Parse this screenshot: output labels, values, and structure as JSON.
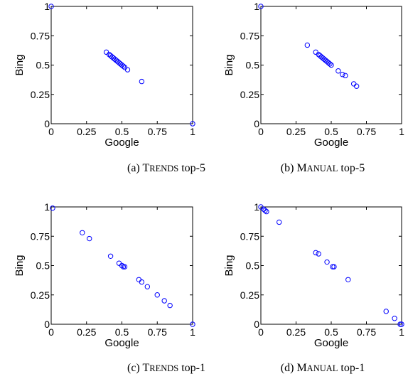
{
  "chart_data": [
    {
      "type": "scatter",
      "caption": {
        "prefix": "(a) ",
        "name_first": "T",
        "name_rest": "RENDS",
        "suffix": " top-5"
      },
      "xlabel": "Google",
      "ylabel": "Bing",
      "xlim": [
        0,
        1
      ],
      "ylim": [
        0,
        1
      ],
      "xticks": [
        "0",
        "0.25",
        "0.5",
        "0.75",
        "1"
      ],
      "yticks": [
        "0",
        "0.25",
        "0.5",
        "0.75",
        "1"
      ],
      "marker": "circle-open",
      "color": "#0000ff",
      "points": [
        [
          0.0,
          1.0
        ],
        [
          0.39,
          0.61
        ],
        [
          0.41,
          0.59
        ],
        [
          0.42,
          0.58
        ],
        [
          0.43,
          0.57
        ],
        [
          0.44,
          0.56
        ],
        [
          0.45,
          0.55
        ],
        [
          0.46,
          0.54
        ],
        [
          0.47,
          0.53
        ],
        [
          0.48,
          0.52
        ],
        [
          0.49,
          0.51
        ],
        [
          0.5,
          0.5
        ],
        [
          0.51,
          0.49
        ],
        [
          0.52,
          0.48
        ],
        [
          0.54,
          0.46
        ],
        [
          0.64,
          0.36
        ],
        [
          1.0,
          0.0
        ]
      ]
    },
    {
      "type": "scatter",
      "caption": {
        "prefix": "(b) ",
        "name_first": "M",
        "name_rest": "ANUAL",
        "suffix": " top-5"
      },
      "xlabel": "Google",
      "ylabel": "Bing",
      "xlim": [
        0,
        1
      ],
      "ylim": [
        0,
        1
      ],
      "xticks": [
        "0",
        "0.25",
        "0.5",
        "0.75",
        "1"
      ],
      "yticks": [
        "0",
        "0.25",
        "0.5",
        "0.75",
        "1"
      ],
      "marker": "circle-open",
      "color": "#0000ff",
      "points": [
        [
          0.0,
          1.0
        ],
        [
          0.33,
          0.67
        ],
        [
          0.39,
          0.61
        ],
        [
          0.41,
          0.59
        ],
        [
          0.42,
          0.58
        ],
        [
          0.43,
          0.57
        ],
        [
          0.44,
          0.56
        ],
        [
          0.45,
          0.55
        ],
        [
          0.46,
          0.54
        ],
        [
          0.47,
          0.53
        ],
        [
          0.48,
          0.52
        ],
        [
          0.49,
          0.51
        ],
        [
          0.5,
          0.5
        ],
        [
          0.55,
          0.45
        ],
        [
          0.58,
          0.42
        ],
        [
          0.6,
          0.41
        ],
        [
          0.66,
          0.34
        ],
        [
          0.68,
          0.32
        ]
      ]
    },
    {
      "type": "scatter",
      "caption": {
        "prefix": "(c) ",
        "name_first": "T",
        "name_rest": "RENDS",
        "suffix": " top-1"
      },
      "xlabel": "Google",
      "ylabel": "Bing",
      "xlim": [
        0,
        1
      ],
      "ylim": [
        0,
        1
      ],
      "xticks": [
        "0",
        "0.25",
        "0.5",
        "0.75",
        "1"
      ],
      "yticks": [
        "0",
        "0.25",
        "0.5",
        "0.75",
        "1"
      ],
      "marker": "circle-open",
      "color": "#0000ff",
      "points": [
        [
          0.01,
          0.99
        ],
        [
          0.22,
          0.78
        ],
        [
          0.27,
          0.73
        ],
        [
          0.42,
          0.58
        ],
        [
          0.48,
          0.52
        ],
        [
          0.5,
          0.5
        ],
        [
          0.51,
          0.49
        ],
        [
          0.52,
          0.49
        ],
        [
          0.62,
          0.38
        ],
        [
          0.64,
          0.36
        ],
        [
          0.68,
          0.32
        ],
        [
          0.75,
          0.25
        ],
        [
          0.8,
          0.2
        ],
        [
          0.84,
          0.16
        ],
        [
          1.0,
          0.0
        ]
      ]
    },
    {
      "type": "scatter",
      "caption": {
        "prefix": "(d) ",
        "name_first": "M",
        "name_rest": "ANUAL",
        "suffix": " top-1"
      },
      "xlabel": "Google",
      "ylabel": "Bing",
      "xlim": [
        0,
        1
      ],
      "ylim": [
        0,
        1
      ],
      "xticks": [
        "0",
        "0.25",
        "0.5",
        "0.75",
        "1"
      ],
      "yticks": [
        "0",
        "0.25",
        "0.5",
        "0.75",
        "1"
      ],
      "marker": "circle-open",
      "color": "#0000ff",
      "points": [
        [
          0.0,
          1.0
        ],
        [
          0.02,
          0.98
        ],
        [
          0.03,
          0.97
        ],
        [
          0.04,
          0.96
        ],
        [
          0.13,
          0.87
        ],
        [
          0.39,
          0.61
        ],
        [
          0.41,
          0.6
        ],
        [
          0.47,
          0.53
        ],
        [
          0.51,
          0.49
        ],
        [
          0.52,
          0.49
        ],
        [
          0.62,
          0.38
        ],
        [
          0.89,
          0.11
        ],
        [
          0.95,
          0.05
        ],
        [
          0.99,
          0.0
        ],
        [
          1.0,
          0.0
        ]
      ]
    }
  ]
}
